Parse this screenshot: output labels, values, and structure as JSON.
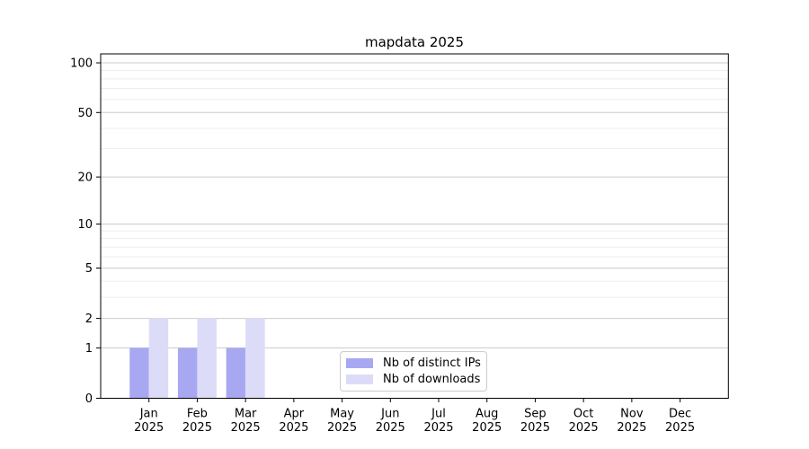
{
  "chart_data": {
    "type": "bar",
    "title": "mapdata 2025",
    "months": [
      "Jan",
      "Feb",
      "Mar",
      "Apr",
      "May",
      "Jun",
      "Jul",
      "Aug",
      "Sep",
      "Oct",
      "Nov",
      "Dec"
    ],
    "year": "2025",
    "series": [
      {
        "name": "Nb of distinct IPs",
        "color": "#a8a8f2",
        "values": [
          1,
          1,
          1,
          0,
          0,
          0,
          0,
          0,
          0,
          0,
          0,
          0
        ]
      },
      {
        "name": "Nb of downloads",
        "color": "#dcdcf8",
        "values": [
          2,
          2,
          2,
          0,
          0,
          0,
          0,
          0,
          0,
          0,
          0,
          0
        ]
      }
    ],
    "yscale": "log1p",
    "ytick_values": [
      0,
      1,
      2,
      5,
      10,
      20,
      50,
      100
    ],
    "ytick_labels": [
      "0",
      "1",
      "2",
      "5",
      "10",
      "20",
      "50",
      "100"
    ],
    "minor_ytick_values": [
      3,
      4,
      6,
      7,
      8,
      9,
      30,
      40,
      60,
      70,
      80,
      90
    ],
    "ylim": [
      0,
      113
    ],
    "xlabel": "",
    "ylabel": "",
    "grid": "horizontal",
    "legend_position": "lower-center",
    "colors": {
      "major_gridline": "#cccccc",
      "minor_gridline": "#ededed",
      "axis": "#000000",
      "background": "#ffffff"
    }
  }
}
